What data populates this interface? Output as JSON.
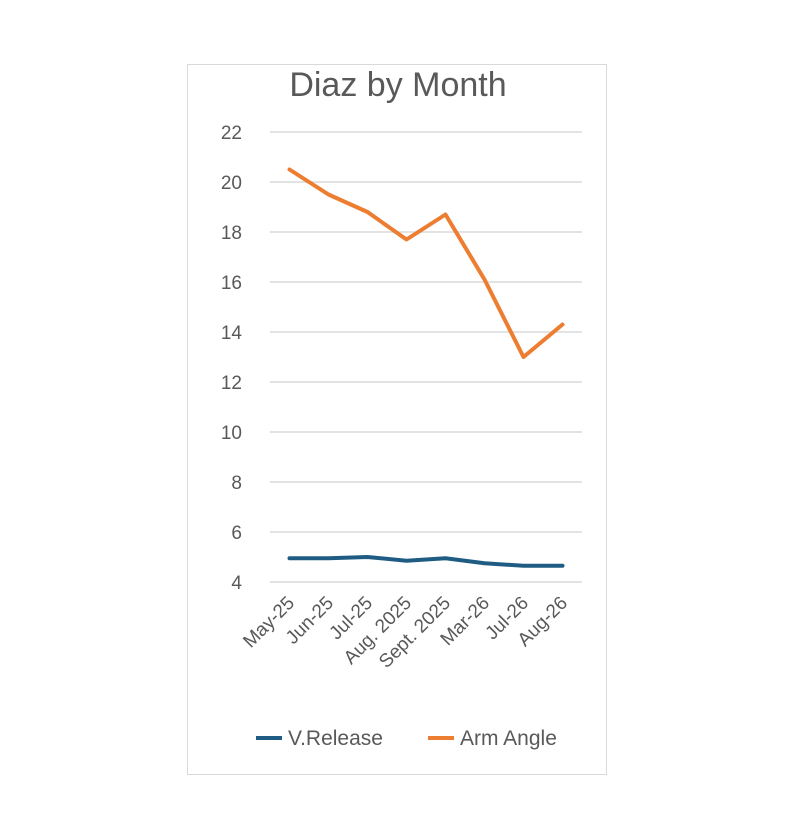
{
  "chart_data": {
    "type": "line",
    "title": "Diaz by Month",
    "xlabel": "",
    "ylabel": "",
    "categories": [
      "May-25",
      "Jun-25",
      "Jul-25",
      "Aug. 2025",
      "Sept. 2025",
      "Mar-26",
      "Jul-26",
      "Aug-26"
    ],
    "ylim": [
      4,
      22
    ],
    "yticks": [
      4,
      6,
      8,
      10,
      12,
      14,
      16,
      18,
      20,
      22
    ],
    "grid": true,
    "legend_position": "bottom",
    "series": [
      {
        "name": "V.Release",
        "color": "#1f5c84",
        "values": [
          4.95,
          4.95,
          5.0,
          4.85,
          4.95,
          4.75,
          4.65,
          4.65
        ]
      },
      {
        "name": "Arm Angle",
        "color": "#ed7d31",
        "values": [
          20.5,
          19.5,
          18.8,
          17.7,
          18.7,
          16.1,
          13.0,
          14.3
        ]
      }
    ]
  }
}
